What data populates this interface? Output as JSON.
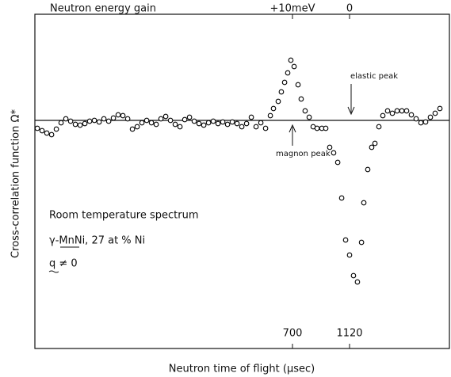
{
  "chart_data": {
    "type": "scatter",
    "top_axis_label": "Neutron energy gain",
    "x_axis_label": "Neutron time of flight (μsec)",
    "y_axis_label": "Cross-correlation function Ω*",
    "annotations": [
      "elastic peak",
      "magnon peak",
      "Room temperature spectrum",
      "γ-MnNi, 27 at % Ni",
      "q ≠ 0"
    ],
    "xlim": [
      -1196,
      1855
    ],
    "ylim": [
      -28.8,
      13.4
    ],
    "xticks": [
      700,
      1120
    ],
    "top_xticks": [
      {
        "value": 700,
        "label": "+10meV"
      },
      {
        "value": 1120,
        "label": "0"
      }
    ],
    "reference_line": 0,
    "marker_color": "#000000",
    "x": [
      -1178,
      -1143,
      -1108,
      -1073,
      -1038,
      -1003,
      -968,
      -933,
      -898,
      -863,
      -828,
      -793,
      -758,
      -723,
      -688,
      -653,
      -618,
      -583,
      -548,
      -513,
      -478,
      -443,
      -408,
      -373,
      -338,
      -303,
      -268,
      -233,
      -198,
      -163,
      -128,
      -93,
      -58,
      -23,
      12,
      47,
      82,
      117,
      152,
      187,
      222,
      257,
      292,
      327,
      362,
      397,
      432,
      467,
      502,
      537,
      560,
      595,
      618,
      642,
      665,
      688,
      712,
      741,
      764,
      793,
      823,
      852,
      881,
      916,
      945,
      974,
      1003,
      1033,
      1062,
      1091,
      1120,
      1149,
      1178,
      1208,
      1225,
      1254,
      1283,
      1307,
      1336,
      1365,
      1400,
      1435,
      1470,
      1505,
      1540,
      1575,
      1610,
      1645,
      1680,
      1715,
      1750,
      1785
    ],
    "values": [
      -1.0,
      -1.3,
      -1.6,
      -1.8,
      -1.1,
      -0.3,
      0.2,
      -0.1,
      -0.5,
      -0.6,
      -0.4,
      -0.1,
      0,
      -0.2,
      0.2,
      -0.1,
      0.3,
      0.7,
      0.6,
      0.2,
      -1.1,
      -0.8,
      -0.3,
      0,
      -0.3,
      -0.5,
      0.2,
      0.5,
      0,
      -0.5,
      -0.8,
      0.1,
      0.4,
      -0.1,
      -0.4,
      -0.6,
      -0.3,
      -0.1,
      -0.4,
      -0.2,
      -0.5,
      -0.2,
      -0.4,
      -0.8,
      -0.4,
      0.4,
      -0.8,
      -0.3,
      -1.0,
      0.6,
      1.5,
      2.4,
      3.6,
      4.8,
      6.0,
      7.6,
      6.8,
      4.5,
      2.7,
      1.2,
      0.4,
      -0.8,
      -1.0,
      -1.0,
      -1.0,
      -3.4,
      -4.1,
      -5.3,
      -9.8,
      -15.1,
      -17.0,
      -19.6,
      -20.4,
      -15.4,
      -10.4,
      -6.2,
      -3.4,
      -2.9,
      -0.8,
      0.6,
      1.2,
      0.9,
      1.2,
      1.2,
      1.2,
      0.7,
      0.2,
      -0.3,
      -0.2,
      0.4,
      0.9,
      1.5
    ]
  }
}
